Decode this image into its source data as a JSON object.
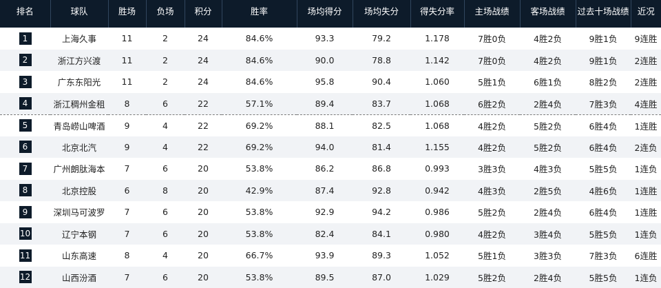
{
  "table": {
    "headers": [
      "排名",
      "球队",
      "胜场",
      "负场",
      "积分",
      "胜率",
      "场均得分",
      "场均失分",
      "得失分率",
      "主场战绩",
      "客场战绩",
      "过去十场战绩",
      "近况"
    ],
    "rows": [
      [
        "1",
        "上海久事",
        "11",
        "2",
        "24",
        "84.6%",
        "93.3",
        "79.2",
        "1.178",
        "7胜0负",
        "4胜2负",
        "9胜1负",
        "9连胜"
      ],
      [
        "2",
        "浙江方兴渡",
        "11",
        "2",
        "24",
        "84.6%",
        "90.0",
        "78.8",
        "1.142",
        "7胜0负",
        "4胜2负",
        "9胜1负",
        "2连胜"
      ],
      [
        "3",
        "广东东阳光",
        "11",
        "2",
        "24",
        "84.6%",
        "95.8",
        "90.4",
        "1.060",
        "5胜1负",
        "6胜1负",
        "8胜2负",
        "2连胜"
      ],
      [
        "4",
        "浙江稠州金租",
        "8",
        "6",
        "22",
        "57.1%",
        "89.4",
        "83.7",
        "1.068",
        "6胜2负",
        "2胜4负",
        "7胜3负",
        "4连胜"
      ],
      [
        "5",
        "青岛崂山啤酒",
        "9",
        "4",
        "22",
        "69.2%",
        "88.1",
        "82.5",
        "1.068",
        "4胜2负",
        "5胜2负",
        "6胜4负",
        "1连胜"
      ],
      [
        "6",
        "北京北汽",
        "9",
        "4",
        "22",
        "69.2%",
        "94.0",
        "81.4",
        "1.155",
        "4胜2负",
        "5胜2负",
        "6胜4负",
        "2连负"
      ],
      [
        "7",
        "广州朗肽海本",
        "7",
        "6",
        "20",
        "53.8%",
        "86.2",
        "86.8",
        "0.993",
        "3胜3负",
        "4胜3负",
        "5胜5负",
        "1连负"
      ],
      [
        "8",
        "北京控股",
        "6",
        "8",
        "20",
        "42.9%",
        "87.4",
        "92.8",
        "0.942",
        "4胜3负",
        "2胜5负",
        "4胜6负",
        "1连胜"
      ],
      [
        "9",
        "深圳马可波罗",
        "7",
        "6",
        "20",
        "53.8%",
        "92.9",
        "94.2",
        "0.986",
        "5胜2负",
        "2胜4负",
        "6胜4负",
        "1连胜"
      ],
      [
        "10",
        "辽宁本钢",
        "7",
        "6",
        "20",
        "53.8%",
        "82.4",
        "84.1",
        "0.980",
        "4胜2负",
        "3胜4负",
        "5胜5负",
        "1连负"
      ],
      [
        "11",
        "山东高速",
        "8",
        "4",
        "20",
        "66.7%",
        "93.9",
        "89.3",
        "1.052",
        "5胜1负",
        "3胜3负",
        "7胜3负",
        "6连胜"
      ],
      [
        "12",
        "山西汾酒",
        "7",
        "6",
        "20",
        "53.8%",
        "89.5",
        "87.0",
        "1.029",
        "5胜2负",
        "2胜4负",
        "5胜5负",
        "1连负"
      ]
    ],
    "cutoff_after_rank": "4"
  },
  "colors": {
    "header_bg": "#0d1b2a",
    "header_text": "#ffffff",
    "badge_bg": "#0d1b2a",
    "row_alt_bg": "#f1f3f6"
  }
}
